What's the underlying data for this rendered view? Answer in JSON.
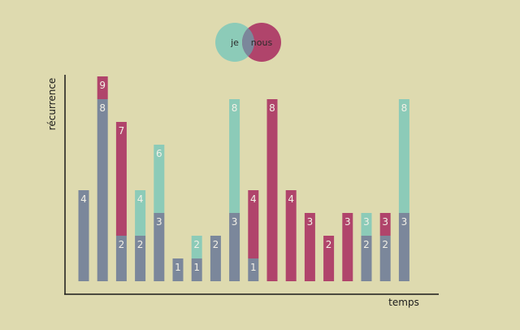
{
  "chart_data": {
    "type": "bar",
    "stacked": true,
    "xlabel": "temps",
    "ylabel": "récurrence",
    "ylim": [
      0,
      9.5
    ],
    "grid": false,
    "legend": {
      "placement": "top-center",
      "style": "venn",
      "entries": [
        "je",
        "nous"
      ]
    },
    "colors": {
      "overlap": "#7b879b",
      "je": "#8ccbb8",
      "nous": "#b0446b",
      "background": "#dedaaf",
      "label": "#f2f0e6"
    },
    "series": [
      {
        "key": "overlap",
        "values": [
          4,
          8,
          2,
          2,
          3,
          1,
          1,
          2,
          3,
          1,
          0,
          0,
          0,
          0,
          0,
          2,
          2,
          3
        ]
      },
      {
        "name": "je",
        "key": "je",
        "values": [
          0,
          0,
          0,
          2,
          3,
          0,
          1,
          0,
          5,
          0,
          0,
          0,
          0,
          0,
          0,
          1,
          0,
          5
        ]
      },
      {
        "name": "nous",
        "key": "nous",
        "values": [
          0,
          1,
          5,
          0,
          0,
          0,
          0,
          0,
          0,
          3,
          8,
          4,
          3,
          2,
          3,
          0,
          1,
          0
        ]
      }
    ],
    "label_mode": "cumulative total at top of each segment"
  }
}
